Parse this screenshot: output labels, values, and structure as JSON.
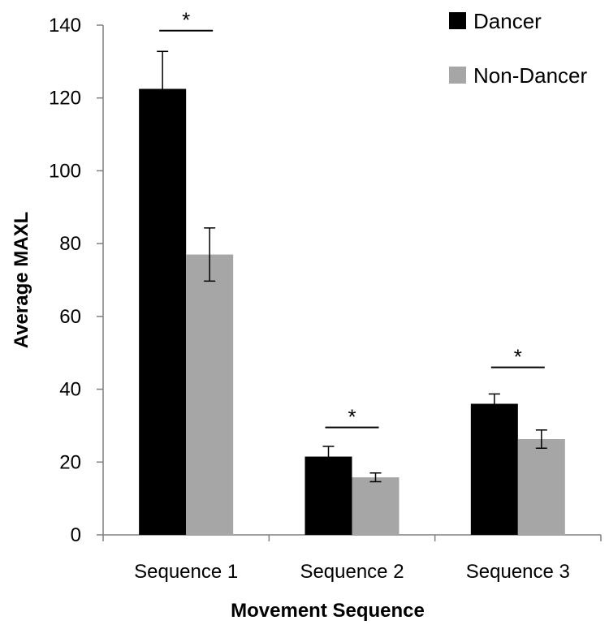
{
  "chart_data": {
    "type": "bar",
    "xlabel": "Movement Sequence",
    "ylabel": "Average MAXL",
    "ylim": [
      0,
      140
    ],
    "yticks": [
      0,
      20,
      40,
      60,
      80,
      100,
      120,
      140
    ],
    "grid": false,
    "legend_position": "top-right",
    "categories": [
      "Sequence 1",
      "Sequence 2",
      "Sequence 3"
    ],
    "series": [
      {
        "name": "Dancer",
        "color": "#000000",
        "values": [
          122.5,
          21.5,
          36
        ],
        "errors": [
          10.3,
          2.8,
          2.7
        ]
      },
      {
        "name": "Non-Dancer",
        "color": "#a6a6a6",
        "values": [
          77,
          15.8,
          26.3
        ],
        "errors": [
          7.3,
          1.2,
          2.5
        ]
      }
    ],
    "annotations": [
      {
        "text": "*",
        "category": 0,
        "level": 138.5
      },
      {
        "text": "*",
        "category": 1,
        "level": 29.5
      },
      {
        "text": "*",
        "category": 2,
        "level": 46
      }
    ]
  }
}
